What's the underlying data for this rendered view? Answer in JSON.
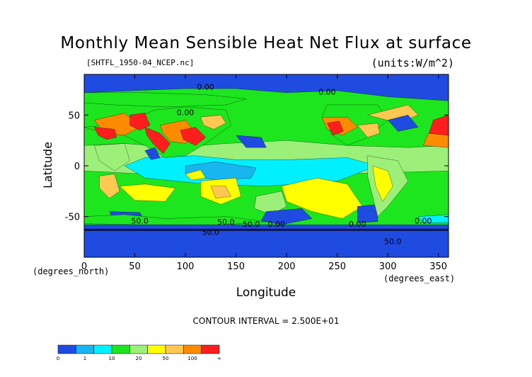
{
  "chart_data": {
    "type": "heatmap",
    "title": "Monthly Mean Sensible Heat Net Flux at surface",
    "subtitle": "[SHTFL_1950-04_NCEP.nc]",
    "units": "(units:W/m^2)",
    "xlabel": "Longitude",
    "ylabel": "Latitude",
    "x_unit_label": "(degrees_east)",
    "y_unit_label": "(degrees_north)",
    "xlim": [
      0,
      360
    ],
    "ylim": [
      -90,
      90
    ],
    "x_ticks": [
      0,
      50,
      100,
      150,
      200,
      250,
      300,
      350
    ],
    "y_ticks": [
      -50,
      0,
      50
    ],
    "contour_interval_text": "CONTOUR INTERVAL = 2.500E+01",
    "contour_labels": [
      "0.00",
      "0.00",
      "0.00",
      "50.0",
      "0.00",
      "50.0",
      "50.0",
      "50.0",
      "0.00",
      "50.0",
      "0.00"
    ],
    "colorbar": {
      "labels": [
        "0",
        "1",
        "10",
        "20",
        "50",
        "100",
        "∞"
      ],
      "colors": [
        "#1f4be0",
        "#17b6f0",
        "#00f0ff",
        "#1ee61e",
        "#9cf07a",
        "#ffff00",
        "#ffc850",
        "#ff8c00",
        "#ff1e1e"
      ]
    },
    "grid": false,
    "legend": "bottom-left colorbar"
  }
}
